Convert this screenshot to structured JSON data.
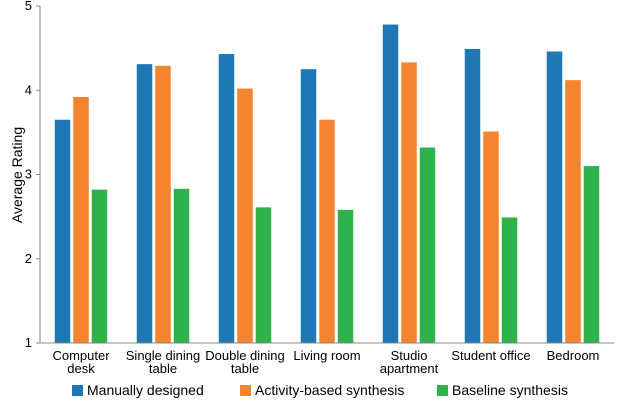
{
  "chart_data": {
    "type": "bar",
    "title": "",
    "xlabel": "",
    "ylabel": "Average Rating",
    "ylim": [
      1,
      5
    ],
    "yticks": [
      1,
      2,
      3,
      4,
      5
    ],
    "grid": false,
    "legend_position": "bottom",
    "categories": [
      [
        "Computer",
        "desk"
      ],
      [
        "Single dining",
        "table"
      ],
      [
        "Double dining",
        "table"
      ],
      [
        "Living room"
      ],
      [
        "Studio",
        "apartment"
      ],
      [
        "Student office"
      ],
      [
        "Bedroom"
      ]
    ],
    "series": [
      {
        "name": "Manually designed",
        "color": "#1f78b4",
        "values": [
          3.65,
          4.31,
          4.43,
          4.25,
          4.78,
          4.49,
          4.46
        ]
      },
      {
        "name": "Activity-based synthesis",
        "color": "#f4842d",
        "values": [
          3.92,
          4.29,
          4.02,
          3.65,
          4.33,
          3.51,
          4.12
        ]
      },
      {
        "name": "Baseline synthesis",
        "color": "#2fb14b",
        "values": [
          2.82,
          2.83,
          2.61,
          2.58,
          3.32,
          2.49,
          3.1
        ]
      }
    ]
  }
}
